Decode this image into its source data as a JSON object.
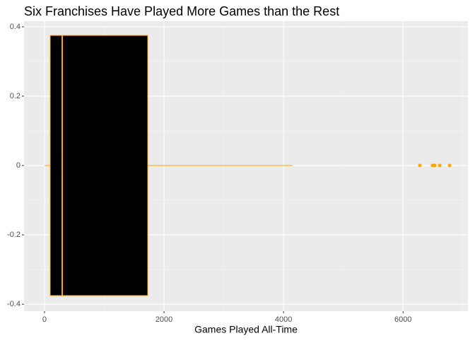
{
  "chart_data": {
    "type": "boxplot",
    "title": "Six Franchises Have Played More Games than the Rest",
    "x_label": "Games Played All-Time",
    "stats": {
      "whislow": 0,
      "q1": 95,
      "median": 296,
      "q3": 1727,
      "whishigh": 4152,
      "outliers": [
        6282,
        6495,
        6520,
        6531,
        6614,
        6780
      ]
    },
    "center_y": 0,
    "box_y": [
      -0.375,
      0.375
    ],
    "fill": "#000000",
    "color": "#FFA500",
    "xlim": [
      -343,
      7086
    ],
    "ylim": [
      -0.42,
      0.416
    ],
    "xticks": [
      0,
      2000,
      4000,
      6000
    ],
    "yticks": [
      -0.4,
      -0.2,
      0.0,
      0.2,
      0.4
    ],
    "xminorticks": [
      1000,
      3000,
      5000,
      7000
    ],
    "yminorticks": [
      -0.3,
      -0.1,
      0.1,
      0.3
    ],
    "grid": true
  }
}
